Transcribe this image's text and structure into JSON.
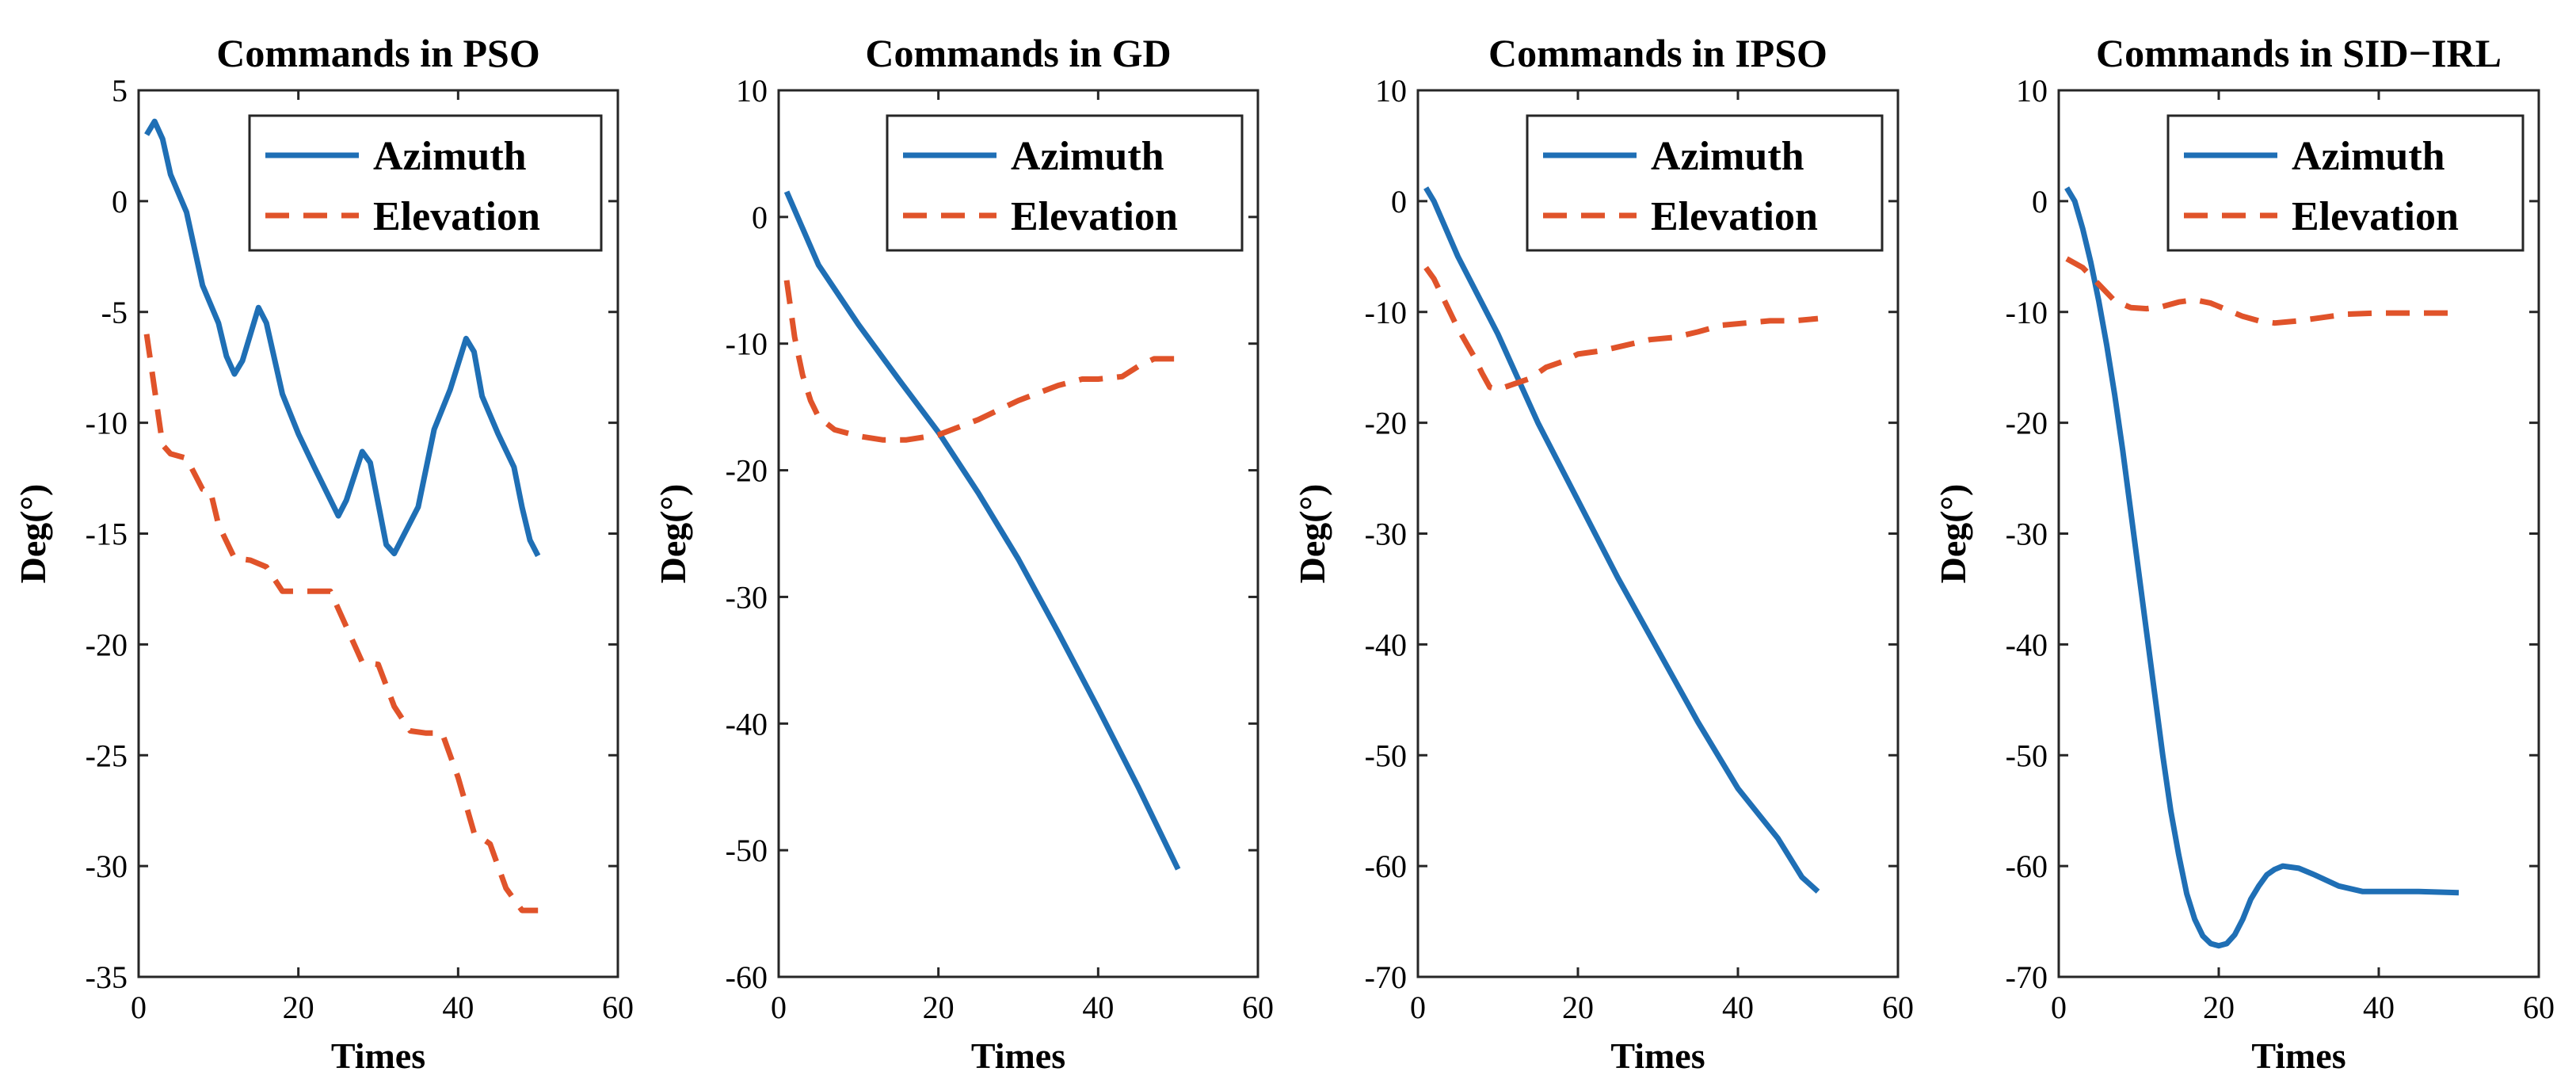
{
  "colors": {
    "azimuth": "#1f6fb5",
    "elevation": "#e0532a",
    "axis": "#262626"
  },
  "chart_data": [
    {
      "type": "line",
      "title": "Commands in PSO",
      "xlabel": "Times",
      "ylabel": "Deg(°)",
      "xlim": [
        0,
        60
      ],
      "ylim": [
        -35,
        5
      ],
      "xticks": [
        0,
        20,
        40,
        60
      ],
      "xtick_labels": [
        "0",
        "20",
        "40",
        "60"
      ],
      "yticks": [
        5,
        0,
        -5,
        -10,
        -15,
        -20,
        -25,
        -30,
        -35
      ],
      "ytick_labels": [
        "5",
        "0",
        "-5",
        "-10",
        "-15",
        "-20",
        "-25",
        "-30",
        "-35"
      ],
      "legend": [
        "Azimuth",
        "Elevation"
      ],
      "legend_position": "top-right",
      "series": [
        {
          "name": "Azimuth",
          "style": "solid",
          "x": [
            1,
            2,
            3,
            4,
            6,
            8,
            10,
            11,
            12,
            13,
            15,
            16,
            18,
            20,
            22,
            25,
            26,
            28,
            29,
            31,
            32,
            35,
            37,
            39,
            41,
            42,
            43,
            45,
            47,
            48,
            49,
            50
          ],
          "y": [
            3.0,
            3.6,
            2.8,
            1.2,
            -0.5,
            -3.8,
            -5.5,
            -7.0,
            -7.8,
            -7.2,
            -4.8,
            -5.5,
            -8.7,
            -10.5,
            -12.0,
            -14.2,
            -13.5,
            -11.3,
            -11.8,
            -15.5,
            -15.9,
            -13.8,
            -10.3,
            -8.5,
            -6.2,
            -6.8,
            -8.8,
            -10.5,
            -12.0,
            -13.8,
            -15.3,
            -16.0
          ]
        },
        {
          "name": "Elevation",
          "style": "dashed",
          "x": [
            1,
            2,
            3,
            4,
            6,
            8,
            9,
            10,
            12,
            14,
            16,
            18,
            20,
            22,
            24,
            26,
            28,
            30,
            32,
            34,
            36,
            38,
            40,
            42,
            44,
            46,
            48,
            50
          ],
          "y": [
            -6.0,
            -8.5,
            -11.0,
            -11.4,
            -11.6,
            -13.0,
            -13.1,
            -14.6,
            -16.1,
            -16.2,
            -16.5,
            -17.6,
            -17.6,
            -17.6,
            -17.6,
            -19.2,
            -20.8,
            -20.9,
            -22.8,
            -23.9,
            -24.0,
            -24.0,
            -26.0,
            -28.5,
            -29.0,
            -31.0,
            -32.0,
            -32.0
          ]
        }
      ]
    },
    {
      "type": "line",
      "title": "Commands in GD",
      "xlabel": "Times",
      "ylabel": "Deg(°)",
      "xlim": [
        0,
        60
      ],
      "ylim": [
        -60,
        10
      ],
      "xticks": [
        0,
        20,
        40,
        60
      ],
      "xtick_labels": [
        "0",
        "20",
        "40",
        "60"
      ],
      "yticks": [
        10,
        0,
        -10,
        -20,
        -30,
        -40,
        -50,
        -60
      ],
      "ytick_labels": [
        "10",
        "0",
        "-10",
        "-20",
        "-30",
        "-40",
        "-50",
        "-60"
      ],
      "legend": [
        "Azimuth",
        "Elevation"
      ],
      "legend_position": "top-right",
      "series": [
        {
          "name": "Azimuth",
          "style": "solid",
          "x": [
            1,
            5,
            10,
            15,
            20,
            25,
            30,
            35,
            40,
            45,
            50
          ],
          "y": [
            2.0,
            -3.8,
            -8.5,
            -12.8,
            -17.0,
            -21.8,
            -27.0,
            -32.8,
            -38.8,
            -45.0,
            -51.5
          ]
        },
        {
          "name": "Elevation",
          "style": "dashed",
          "x": [
            1,
            2,
            3,
            4,
            5,
            7,
            10,
            13,
            16,
            20,
            25,
            30,
            35,
            38,
            40,
            43,
            45,
            47,
            50
          ],
          "y": [
            -5.0,
            -9.5,
            -12.5,
            -14.5,
            -15.8,
            -16.8,
            -17.3,
            -17.6,
            -17.6,
            -17.2,
            -16.0,
            -14.5,
            -13.3,
            -12.8,
            -12.8,
            -12.6,
            -11.8,
            -11.2,
            -11.2
          ]
        }
      ]
    },
    {
      "type": "line",
      "title": "Commands in IPSO",
      "xlabel": "Times",
      "ylabel": "Deg(°)",
      "xlim": [
        0,
        60
      ],
      "ylim": [
        -70,
        10
      ],
      "xticks": [
        0,
        20,
        40,
        60
      ],
      "xtick_labels": [
        "0",
        "20",
        "40",
        "60"
      ],
      "yticks": [
        10,
        0,
        -10,
        -20,
        -30,
        -40,
        -50,
        -60,
        -70
      ],
      "ytick_labels": [
        "10",
        "0",
        "-10",
        "-20",
        "-30",
        "-40",
        "-50",
        "-60",
        "-70"
      ],
      "legend": [
        "Azimuth",
        "Elevation"
      ],
      "legend_position": "top-right",
      "series": [
        {
          "name": "Azimuth",
          "style": "solid",
          "x": [
            1,
            2,
            5,
            10,
            15,
            20,
            25,
            30,
            35,
            40,
            45,
            48,
            50
          ],
          "y": [
            1.2,
            0.0,
            -5.0,
            -12.0,
            -20.0,
            -27.0,
            -34.0,
            -40.5,
            -47.0,
            -53.0,
            -57.5,
            -61.0,
            -62.3
          ]
        },
        {
          "name": "Elevation",
          "style": "dashed",
          "x": [
            1,
            2,
            3,
            5,
            7,
            8,
            9,
            10,
            12,
            14,
            16,
            18,
            20,
            23,
            26,
            29,
            32,
            35,
            38,
            41,
            44,
            47,
            50
          ],
          "y": [
            -6.0,
            -7.0,
            -8.5,
            -11.5,
            -14.0,
            -15.5,
            -16.8,
            -17.0,
            -16.5,
            -16.0,
            -15.0,
            -14.5,
            -13.8,
            -13.5,
            -13.0,
            -12.5,
            -12.3,
            -11.8,
            -11.2,
            -11.0,
            -10.8,
            -10.8,
            -10.6
          ]
        }
      ]
    },
    {
      "type": "line",
      "title": "Commands in SID−IRL",
      "xlabel": "Times",
      "ylabel": "Deg(°)",
      "xlim": [
        0,
        60
      ],
      "ylim": [
        -70,
        10
      ],
      "xticks": [
        0,
        20,
        40,
        60
      ],
      "xtick_labels": [
        "0",
        "20",
        "40",
        "60"
      ],
      "yticks": [
        10,
        0,
        -10,
        -20,
        -30,
        -40,
        -50,
        -60,
        -70
      ],
      "ytick_labels": [
        "10",
        "0",
        "-10",
        "-20",
        "-30",
        "-40",
        "-50",
        "-60",
        "-70"
      ],
      "legend": [
        "Azimuth",
        "Elevation"
      ],
      "legend_position": "top-right",
      "series": [
        {
          "name": "Azimuth",
          "style": "solid",
          "x": [
            1,
            2,
            3,
            4,
            5,
            6,
            7,
            8,
            9,
            10,
            11,
            12,
            13,
            14,
            15,
            16,
            17,
            18,
            19,
            20,
            21,
            22,
            23,
            24,
            25,
            26,
            27,
            28,
            30,
            32,
            35,
            38,
            40,
            45,
            50
          ],
          "y": [
            1.2,
            0.0,
            -2.5,
            -5.5,
            -9.0,
            -13.0,
            -17.5,
            -22.5,
            -28.0,
            -33.5,
            -39.0,
            -44.5,
            -50.0,
            -55.0,
            -59.0,
            -62.5,
            -64.8,
            -66.3,
            -67.0,
            -67.2,
            -67.0,
            -66.2,
            -64.8,
            -63.0,
            -61.8,
            -60.8,
            -60.3,
            -60.0,
            -60.2,
            -60.8,
            -61.8,
            -62.3,
            -62.3,
            -62.3,
            -62.4
          ]
        },
        {
          "name": "Elevation",
          "style": "dashed",
          "x": [
            1,
            3,
            5,
            7,
            9,
            11,
            13,
            15,
            17,
            19,
            21,
            23,
            25,
            27,
            30,
            33,
            36,
            40,
            45,
            50
          ],
          "y": [
            -5.2,
            -6.0,
            -7.5,
            -9.0,
            -9.6,
            -9.7,
            -9.5,
            -9.1,
            -8.9,
            -9.2,
            -9.8,
            -10.4,
            -10.8,
            -11.0,
            -10.8,
            -10.5,
            -10.2,
            -10.1,
            -10.1,
            -10.1
          ]
        }
      ]
    }
  ]
}
